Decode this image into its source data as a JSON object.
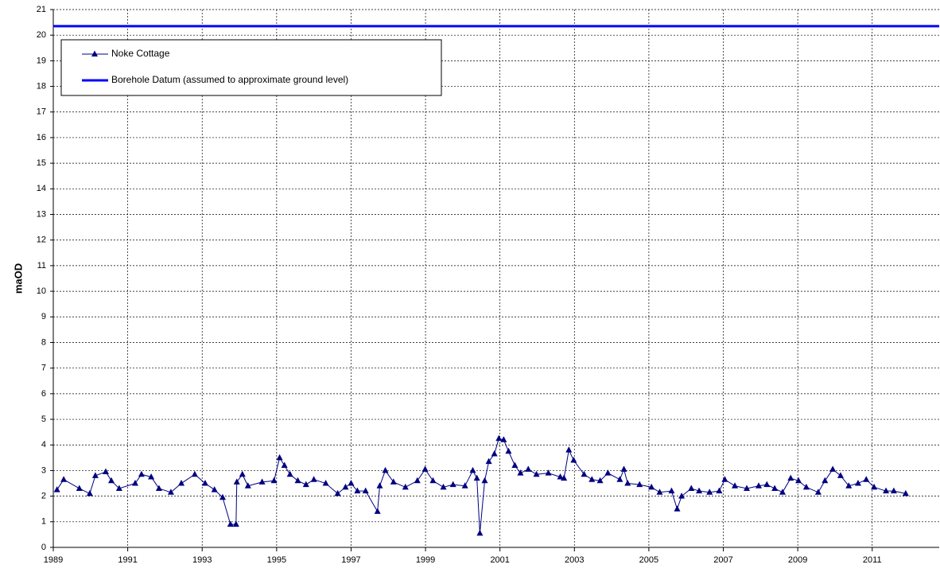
{
  "chart_data": {
    "type": "line",
    "y_label": "maOD",
    "x": [
      1989.1,
      1989.28,
      1989.7,
      1989.98,
      1990.13,
      1990.41,
      1990.56,
      1990.77,
      1991.2,
      1991.37,
      1991.63,
      1991.84,
      1992.16,
      1992.44,
      1992.8,
      1993.08,
      1993.33,
      1993.55,
      1993.76,
      1993.91,
      1993.93,
      1994.08,
      1994.23,
      1994.61,
      1994.93,
      1995.08,
      1995.21,
      1995.36,
      1995.57,
      1995.79,
      1996.0,
      1996.32,
      1996.64,
      1996.85,
      1997.0,
      1997.17,
      1997.39,
      1997.71,
      1997.77,
      1997.92,
      1998.14,
      1998.46,
      1998.78,
      1998.99,
      1999.2,
      1999.48,
      1999.74,
      2000.06,
      2000.27,
      2000.38,
      2000.46,
      2000.59,
      2000.7,
      2000.85,
      2000.97,
      2001.1,
      2001.23,
      2001.4,
      2001.55,
      2001.76,
      2001.98,
      2002.3,
      2002.62,
      2002.72,
      2002.85,
      2002.98,
      2003.26,
      2003.47,
      2003.69,
      2003.9,
      2004.22,
      2004.33,
      2004.43,
      2004.75,
      2005.07,
      2005.29,
      2005.61,
      2005.76,
      2005.88,
      2006.14,
      2006.35,
      2006.63,
      2006.89,
      2007.04,
      2007.31,
      2007.63,
      2007.95,
      2008.17,
      2008.38,
      2008.59,
      2008.81,
      2009.02,
      2009.23,
      2009.55,
      2009.73,
      2009.94,
      2010.15,
      2010.37,
      2010.62,
      2010.84,
      2011.05,
      2011.37,
      2011.58,
      2011.9
    ],
    "series": [
      {
        "name": "Noke Cottage",
        "color": "#000080",
        "values": [
          2.25,
          2.65,
          2.3,
          2.1,
          2.8,
          2.95,
          2.6,
          2.3,
          2.5,
          2.85,
          2.75,
          2.3,
          2.15,
          2.5,
          2.85,
          2.5,
          2.25,
          1.95,
          0.9,
          0.9,
          2.55,
          2.85,
          2.4,
          2.55,
          2.6,
          3.5,
          3.2,
          2.85,
          2.6,
          2.45,
          2.65,
          2.5,
          2.1,
          2.35,
          2.5,
          2.2,
          2.2,
          1.4,
          2.4,
          3.0,
          2.55,
          2.35,
          2.6,
          3.05,
          2.6,
          2.35,
          2.45,
          2.4,
          3.0,
          2.7,
          0.55,
          2.6,
          3.35,
          3.65,
          4.25,
          4.2,
          3.75,
          3.2,
          2.9,
          3.05,
          2.85,
          2.9,
          2.75,
          2.7,
          3.8,
          3.4,
          2.85,
          2.65,
          2.6,
          2.9,
          2.65,
          3.05,
          2.5,
          2.45,
          2.35,
          2.15,
          2.2,
          1.5,
          2.0,
          2.3,
          2.2,
          2.15,
          2.2,
          2.65,
          2.4,
          2.3,
          2.4,
          2.45,
          2.3,
          2.15,
          2.7,
          2.6,
          2.35,
          2.15,
          2.6,
          3.05,
          2.8,
          2.4,
          2.5,
          2.65,
          2.35,
          2.2,
          2.2,
          2.1
        ]
      }
    ],
    "reference_lines": [
      {
        "name": "Borehole Datum (assumed to approximate ground level)",
        "value": 20.35,
        "color": "#0000ff"
      }
    ],
    "xlim": [
      1989,
      2012.8
    ],
    "xticks": [
      1989,
      1991,
      1993,
      1995,
      1997,
      1999,
      2001,
      2003,
      2005,
      2007,
      2009,
      2011
    ],
    "ylim": [
      0,
      21
    ],
    "yticks": [
      0,
      1,
      2,
      3,
      4,
      5,
      6,
      7,
      8,
      9,
      10,
      11,
      12,
      13,
      14,
      15,
      16,
      17,
      18,
      19,
      20,
      21
    ],
    "grid": true
  }
}
